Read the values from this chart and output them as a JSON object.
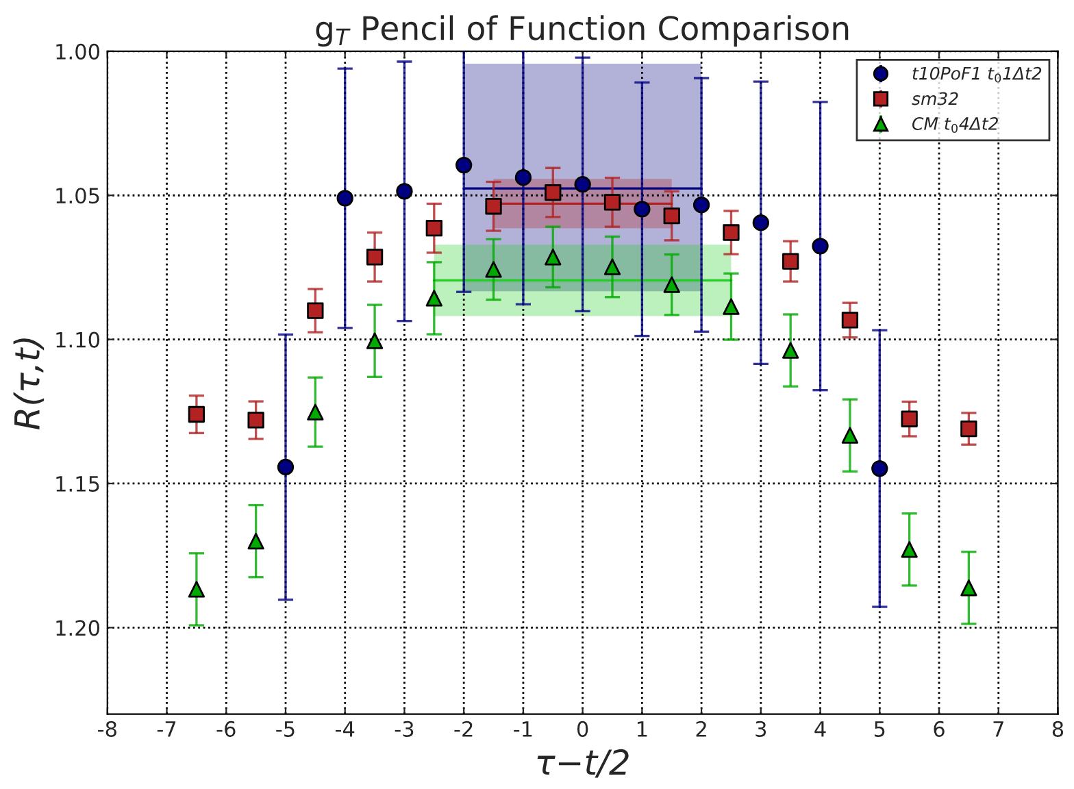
{
  "chart_data": {
    "type": "scatter",
    "title": "g$_{T}$ Pencil of Function Comparison",
    "xlabel": "τ−t/2",
    "ylabel": "R(τ,t)",
    "xlim": [
      -8,
      8
    ],
    "xticks": [
      -8,
      -7,
      -6,
      -5,
      -4,
      -3,
      -2,
      -1,
      0,
      1,
      2,
      3,
      4,
      5,
      6,
      7,
      8
    ],
    "ylim": [
      1.23,
      1.0
    ],
    "yticks": [
      {
        "value": 1.0,
        "label": "1.00"
      },
      {
        "value": 1.05,
        "label": "1.05"
      },
      {
        "value": 1.1,
        "label": "1.10"
      },
      {
        "value": 1.15,
        "label": "1.15"
      },
      {
        "value": 1.2,
        "label": "1.20"
      }
    ],
    "grid": true,
    "legend": "top right",
    "series": [
      {
        "type": "line",
        "color": "#000080",
        "x": [
          -2,
          2
        ],
        "values": [
          1.0476,
          1.0476
        ],
        "lower": [
          1.0043,
          1.0043
        ],
        "upper": [
          1.0833,
          1.0833
        ]
      },
      {
        "type": "line",
        "color": "#b22222",
        "x": [
          -1.5,
          1.5
        ],
        "values": [
          1.0529,
          1.0529
        ],
        "lower": [
          1.0443,
          1.0443
        ],
        "upper": [
          1.0614,
          1.0614
        ]
      },
      {
        "type": "line",
        "color": "#22cc22",
        "x": [
          -2.5,
          2.5
        ],
        "values": [
          1.0795,
          1.0795
        ],
        "lower": [
          1.0671,
          1.0671
        ],
        "upper": [
          1.0919,
          1.0919
        ]
      },
      {
        "name": "t10PoF1 t$_{0}$1Δt2",
        "color": "#000080",
        "marker": "circle",
        "x": [
          -5,
          -4,
          -3,
          -2,
          -1,
          0,
          1,
          2,
          3,
          4,
          5
        ],
        "values": [
          1.1443,
          1.051,
          1.0486,
          1.0395,
          1.0438,
          1.0462,
          1.0548,
          1.0533,
          1.0595,
          1.0676,
          1.1448
        ],
        "errors": [
          0.046,
          0.045,
          0.045,
          0.044,
          0.044,
          0.044,
          0.044,
          0.044,
          0.049,
          0.05,
          0.048
        ]
      },
      {
        "name": "sm32",
        "color": "#b22222",
        "marker": "square",
        "x": [
          -6.5,
          -5.5,
          -4.5,
          -3.5,
          -2.5,
          -1.5,
          -0.5,
          0.5,
          1.5,
          2.5,
          3.5,
          4.5,
          5.5,
          6.5
        ],
        "values": [
          1.126,
          1.128,
          1.09,
          1.0714,
          1.0614,
          1.0538,
          1.049,
          1.0524,
          1.0571,
          1.0629,
          1.0729,
          1.0933,
          1.1276,
          1.131
        ],
        "errors": [
          0.0065,
          0.0065,
          0.0075,
          0.0085,
          0.0085,
          0.0085,
          0.0085,
          0.0085,
          0.0085,
          0.0075,
          0.007,
          0.006,
          0.006,
          0.0055
        ]
      },
      {
        "name": "CM t$_{0}$4Δt2",
        "color": "#00aa00",
        "marker": "triangle",
        "x": [
          -6.5,
          -5.5,
          -4.5,
          -3.5,
          -2.5,
          -1.5,
          -0.5,
          0.5,
          1.5,
          2.5,
          3.5,
          4.5,
          5.5,
          6.5
        ],
        "values": [
          1.1867,
          1.17,
          1.1252,
          1.1005,
          1.0857,
          1.0757,
          1.0714,
          1.0748,
          1.081,
          1.0886,
          1.1038,
          1.1333,
          1.1729,
          1.1862
        ],
        "errors": [
          0.0125,
          0.0125,
          0.012,
          0.0125,
          0.0125,
          0.0105,
          0.0105,
          0.0105,
          0.0105,
          0.0115,
          0.0125,
          0.0125,
          0.0125,
          0.0125
        ]
      }
    ]
  }
}
